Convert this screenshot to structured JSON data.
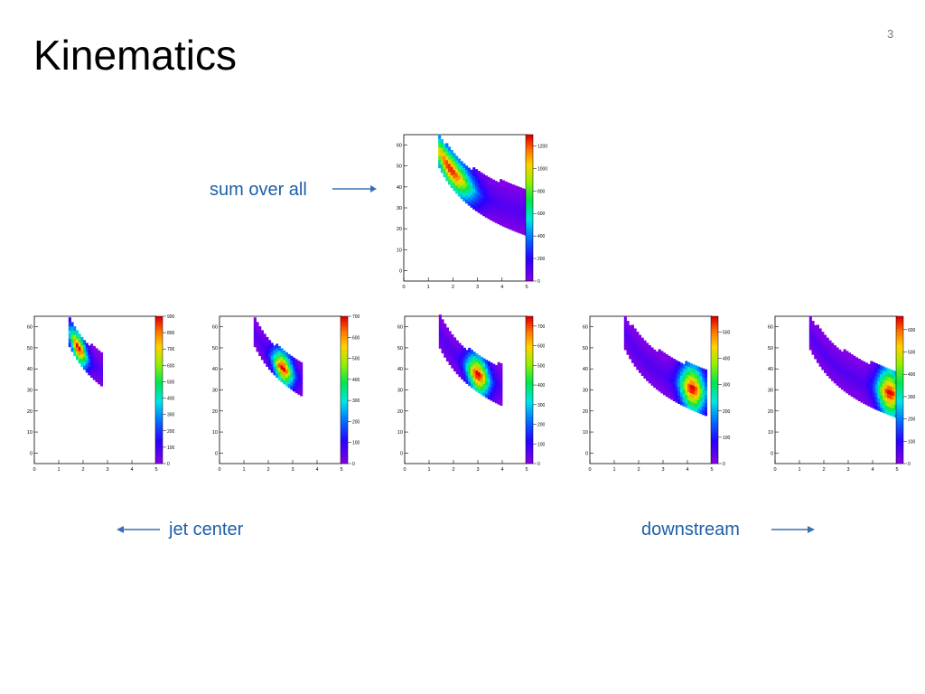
{
  "slide": {
    "title": "Kinematics",
    "number": "3"
  },
  "annotations": {
    "sum": "sum over all",
    "left": "jet center",
    "right": "downstream"
  },
  "colors": {
    "caption": "#1f5fa8",
    "arrow": "#3a6fb0"
  },
  "chart_data": [
    {
      "id": "sum",
      "type": "heatmap",
      "colormap": "rainbow",
      "x_ticks": [
        "0",
        "1",
        "2",
        "3",
        "4",
        "5"
      ],
      "y_ticks": [
        "0",
        "10",
        "20",
        "30",
        "40",
        "50",
        "60"
      ],
      "z_ticks": [
        "0",
        "200",
        "400",
        "600",
        "800",
        "1000",
        "1200"
      ],
      "xlim": [
        0,
        5
      ],
      "ylim": [
        -5,
        65
      ],
      "zmax": 1300,
      "x_range": [
        1.4,
        5.0
      ],
      "band_width": 11,
      "peak_x": 1.9,
      "peak_spread": 0.9,
      "peak_z": 1250
    },
    {
      "id": "panel-1",
      "type": "heatmap",
      "colormap": "rainbow",
      "x_ticks": [
        "0",
        "1",
        "2",
        "3",
        "4",
        "5"
      ],
      "y_ticks": [
        "0",
        "10",
        "20",
        "30",
        "40",
        "50",
        "60"
      ],
      "z_ticks": [
        "0",
        "100",
        "200",
        "300",
        "400",
        "500",
        "600",
        "700",
        "800",
        "900"
      ],
      "xlim": [
        0,
        5
      ],
      "ylim": [
        -5,
        65
      ],
      "zmax": 900,
      "x_range": [
        1.4,
        2.8
      ],
      "band_width": 9,
      "peak_x": 1.8,
      "peak_spread": 0.35,
      "peak_z": 880
    },
    {
      "id": "panel-2",
      "type": "heatmap",
      "colormap": "rainbow",
      "x_ticks": [
        "0",
        "1",
        "2",
        "3",
        "4",
        "5"
      ],
      "y_ticks": [
        "0",
        "10",
        "20",
        "30",
        "40",
        "50",
        "60"
      ],
      "z_ticks": [
        "0",
        "100",
        "200",
        "300",
        "400",
        "500",
        "600",
        "700"
      ],
      "xlim": [
        0,
        5
      ],
      "ylim": [
        -5,
        65
      ],
      "zmax": 700,
      "x_range": [
        1.4,
        3.4
      ],
      "band_width": 9,
      "peak_x": 2.6,
      "peak_spread": 0.4,
      "peak_z": 690
    },
    {
      "id": "panel-3",
      "type": "heatmap",
      "colormap": "rainbow",
      "x_ticks": [
        "0",
        "1",
        "2",
        "3",
        "4",
        "5"
      ],
      "y_ticks": [
        "0",
        "10",
        "20",
        "30",
        "40",
        "50",
        "60"
      ],
      "z_ticks": [
        "0",
        "100",
        "200",
        "300",
        "400",
        "500",
        "600",
        "700"
      ],
      "xlim": [
        0,
        5
      ],
      "ylim": [
        -5,
        65
      ],
      "zmax": 750,
      "x_range": [
        1.4,
        4.0
      ],
      "band_width": 10,
      "peak_x": 3.0,
      "peak_spread": 0.45,
      "peak_z": 740
    },
    {
      "id": "panel-4",
      "type": "heatmap",
      "colormap": "rainbow",
      "x_ticks": [
        "0",
        "1",
        "2",
        "3",
        "4",
        "5"
      ],
      "y_ticks": [
        "0",
        "10",
        "20",
        "30",
        "40",
        "50",
        "60"
      ],
      "z_ticks": [
        "0",
        "100",
        "200",
        "300",
        "400",
        "500"
      ],
      "xlim": [
        0,
        5
      ],
      "ylim": [
        -5,
        65
      ],
      "zmax": 560,
      "x_range": [
        1.4,
        4.8
      ],
      "band_width": 11,
      "peak_x": 4.2,
      "peak_spread": 0.5,
      "peak_z": 550
    },
    {
      "id": "panel-5",
      "type": "heatmap",
      "colormap": "rainbow",
      "x_ticks": [
        "0",
        "1",
        "2",
        "3",
        "4",
        "5"
      ],
      "y_ticks": [
        "0",
        "10",
        "20",
        "30",
        "40",
        "50",
        "60"
      ],
      "z_ticks": [
        "0",
        "100",
        "200",
        "300",
        "400",
        "500",
        "600"
      ],
      "xlim": [
        0,
        5
      ],
      "ylim": [
        -5,
        65
      ],
      "zmax": 660,
      "x_range": [
        1.4,
        5.0
      ],
      "band_width": 11,
      "peak_x": 4.7,
      "peak_spread": 0.5,
      "peak_z": 650
    }
  ]
}
